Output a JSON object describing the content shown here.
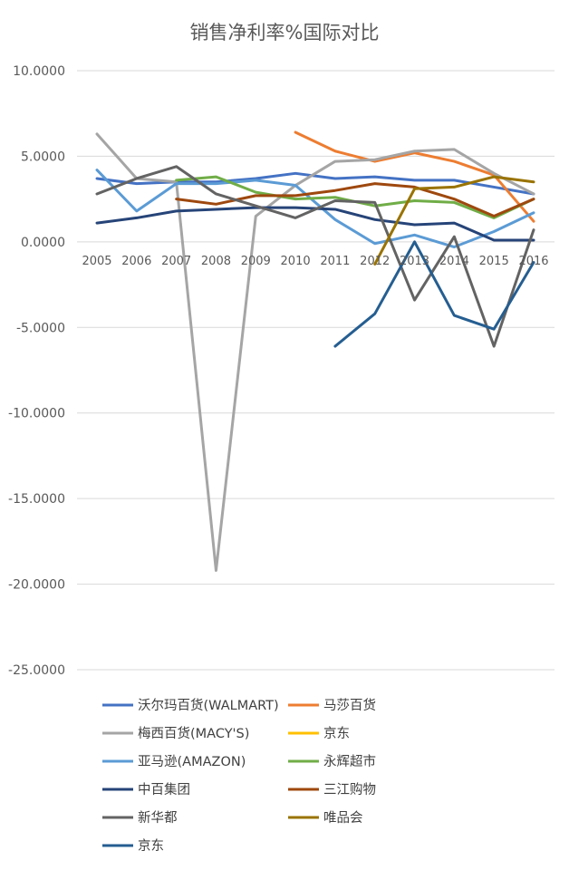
{
  "chart_data": {
    "type": "line",
    "title": "销售净利率%国际对比",
    "xlabel": "",
    "ylabel": "",
    "ylim": [
      -25,
      10
    ],
    "y_ticks": [
      10,
      5,
      0,
      -5,
      -10,
      -15,
      -20,
      -25
    ],
    "y_tick_labels": [
      "10.0000",
      "5.0000",
      "0.0000",
      "-5.0000",
      "-10.0000",
      "-15.0000",
      "-20.0000",
      "-25.0000"
    ],
    "categories": [
      "2005",
      "2006",
      "2007",
      "2008",
      "2009",
      "2010",
      "2011",
      "2012",
      "2013",
      "2014",
      "2015",
      "2016"
    ],
    "grid": true,
    "legend_position": "bottom",
    "series": [
      {
        "name": "沃尔玛百货(WALMART)",
        "color": "#4472c4",
        "values": [
          3.7,
          3.4,
          3.5,
          3.5,
          3.7,
          4.0,
          3.7,
          3.8,
          3.6,
          3.6,
          3.2,
          2.8
        ]
      },
      {
        "name": "马莎百货",
        "color": "#ed7d31",
        "values": [
          null,
          null,
          null,
          null,
          null,
          6.4,
          5.3,
          4.7,
          5.2,
          4.7,
          3.9,
          1.2
        ]
      },
      {
        "name": "梅西百货(MACY'S)",
        "color": "#a5a5a5",
        "values": [
          6.3,
          3.7,
          3.5,
          -19.2,
          1.5,
          3.3,
          4.7,
          4.8,
          5.3,
          5.4,
          4.0,
          2.8
        ]
      },
      {
        "name": "京东",
        "color": "#ffc000",
        "values": [
          null,
          null,
          null,
          null,
          null,
          null,
          null,
          null,
          null,
          null,
          null,
          null
        ]
      },
      {
        "name": "亚马逊(AMAZON)",
        "color": "#5b9bd5",
        "values": [
          4.2,
          1.8,
          3.4,
          3.4,
          3.6,
          3.3,
          1.3,
          -0.1,
          0.4,
          -0.3,
          0.6,
          1.7
        ]
      },
      {
        "name": "永辉超市",
        "color": "#70ad47",
        "values": [
          null,
          null,
          3.6,
          3.8,
          2.9,
          2.5,
          2.6,
          2.1,
          2.4,
          2.3,
          1.4,
          2.5
        ]
      },
      {
        "name": "中百集团",
        "color": "#264478",
        "values": [
          1.1,
          1.4,
          1.8,
          1.9,
          2.0,
          2.0,
          1.9,
          1.3,
          1.0,
          1.1,
          0.1,
          0.1
        ]
      },
      {
        "name": "三江购物",
        "color": "#9e480e",
        "values": [
          null,
          null,
          2.5,
          2.2,
          2.7,
          2.7,
          3.0,
          3.4,
          3.2,
          2.5,
          1.5,
          2.5
        ]
      },
      {
        "name": "新华都",
        "color": "#636363",
        "values": [
          2.8,
          3.7,
          4.4,
          2.8,
          2.1,
          1.4,
          2.4,
          2.3,
          -3.4,
          0.3,
          -6.1,
          0.7
        ]
      },
      {
        "name": "唯品会",
        "color": "#997300",
        "values": [
          null,
          null,
          null,
          null,
          null,
          null,
          null,
          -1.3,
          3.1,
          3.2,
          3.8,
          3.5
        ]
      },
      {
        "name": "京东",
        "color": "#255e91",
        "values": [
          null,
          null,
          null,
          null,
          null,
          null,
          -6.1,
          -4.2,
          0.0,
          -4.3,
          -5.1,
          -1.2
        ]
      }
    ]
  }
}
